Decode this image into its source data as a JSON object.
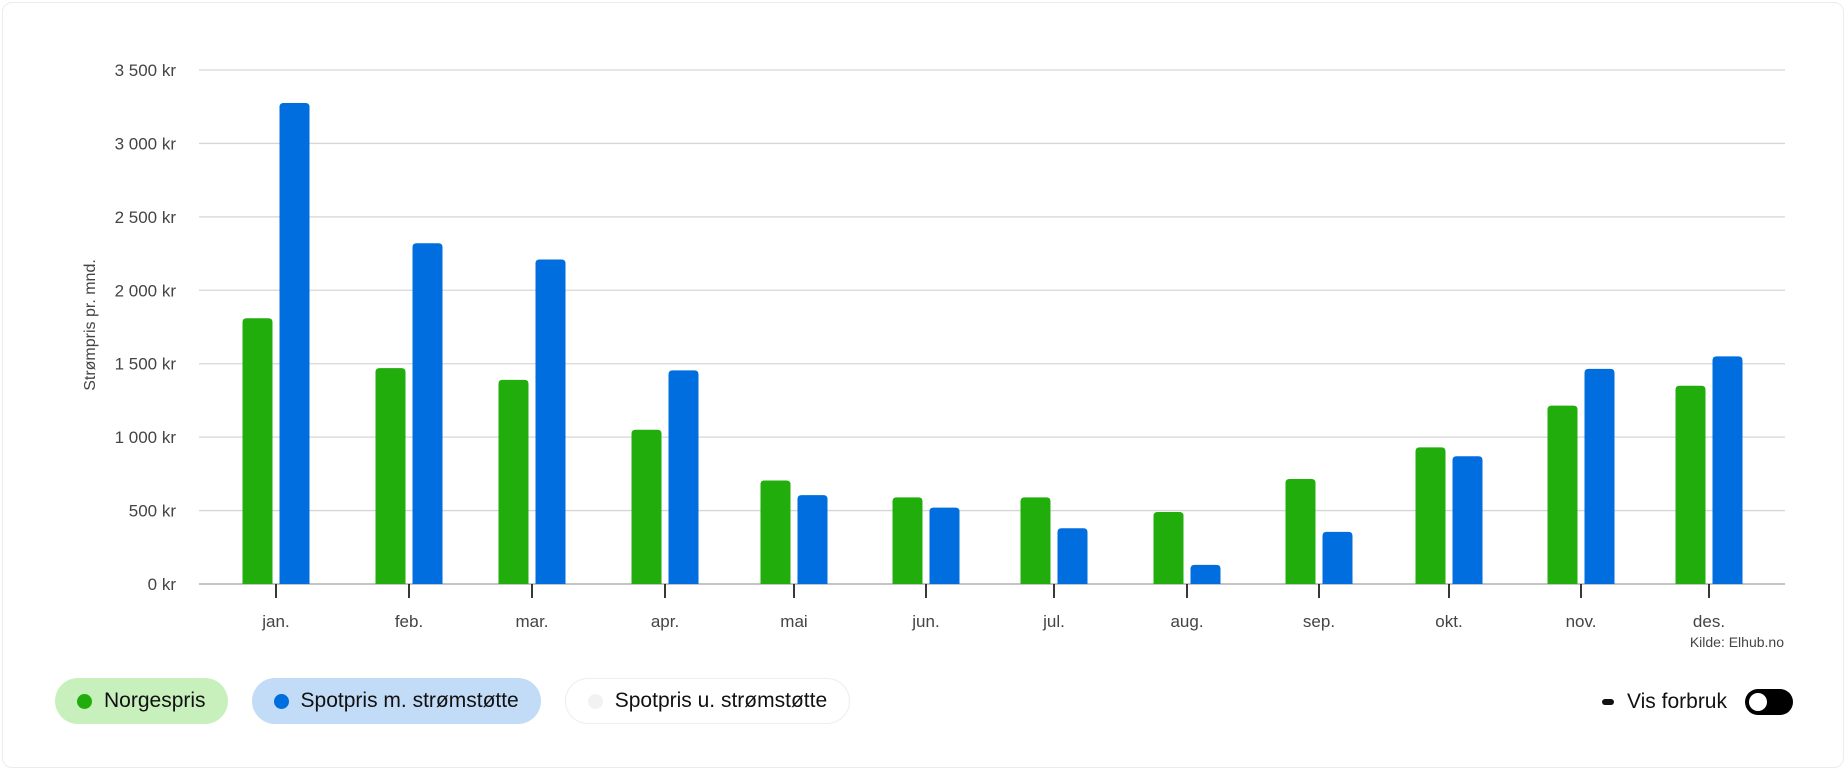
{
  "chart_data": {
    "type": "bar",
    "categories": [
      "jan.",
      "feb.",
      "mar.",
      "apr.",
      "mai",
      "jun.",
      "jul.",
      "aug.",
      "sep.",
      "okt.",
      "nov.",
      "des."
    ],
    "series": [
      {
        "name": "Norgespris",
        "color": "#21ad0c",
        "values": [
          1810,
          1470,
          1390,
          1050,
          705,
          590,
          590,
          490,
          715,
          930,
          1215,
          1350
        ]
      },
      {
        "name": "Spotpris m. strømstøtte",
        "color": "#006ede",
        "values": [
          3275,
          2320,
          2210,
          1455,
          605,
          520,
          380,
          130,
          355,
          870,
          1465,
          1550
        ]
      }
    ],
    "ylabel": "Strømpris pr. mnd.",
    "ylim": [
      0,
      3500
    ],
    "yticks": [
      0,
      500,
      1000,
      1500,
      2000,
      2500,
      3000,
      3500
    ],
    "ytick_labels": [
      "0 kr",
      "500 kr",
      "1 000 kr",
      "1 500 kr",
      "2 000 kr",
      "2 500 kr",
      "3 000 kr",
      "3 500 kr"
    ],
    "source": "Kilde: Elhub.no",
    "grid": true
  },
  "legend": {
    "items": [
      {
        "label": "Norgespris",
        "color": "#21ad0c"
      },
      {
        "label": "Spotpris m. strømstøtte",
        "color": "#006ede"
      },
      {
        "label": "Spotpris u. strømstøtte",
        "color": "#f2f2f2"
      }
    ]
  },
  "usage_toggle": {
    "label": "Vis forbruk",
    "on": false
  }
}
